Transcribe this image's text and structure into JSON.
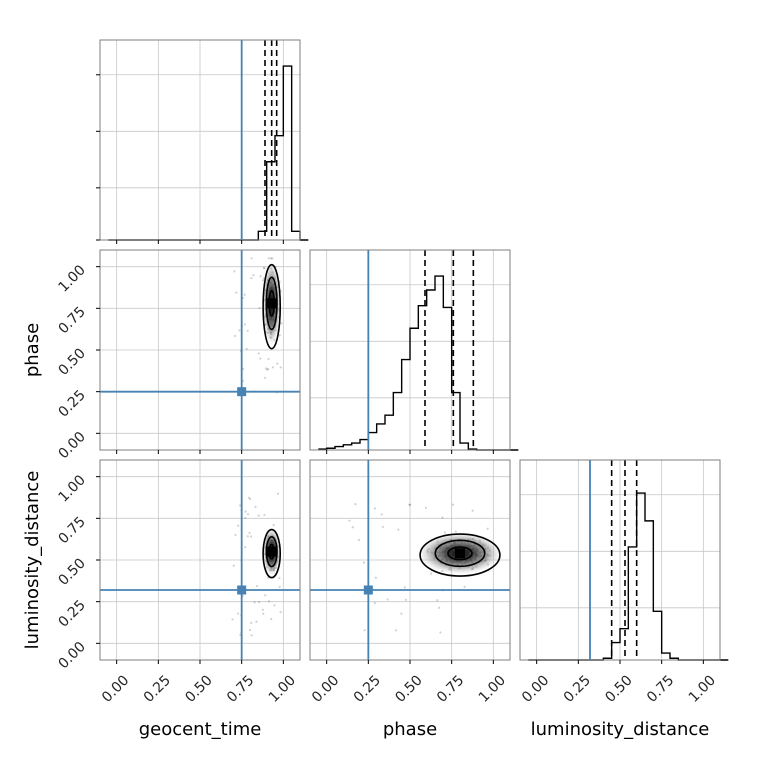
{
  "chart_data": {
    "type": "corner",
    "parameters": [
      "geocent_time",
      "phase",
      "luminosity_distance"
    ],
    "axis_range": [
      -0.1,
      1.1
    ],
    "ticks": [
      0.0,
      0.25,
      0.5,
      0.75,
      1.0
    ],
    "tick_labels": [
      "0.00",
      "0.25",
      "0.50",
      "0.75",
      "1.00"
    ],
    "grid": true,
    "truths": [
      0.75,
      0.25,
      0.32
    ],
    "quantiles": [
      [
        0.89,
        0.93,
        0.96
      ],
      [
        0.59,
        0.76,
        0.88
      ],
      [
        0.45,
        0.53,
        0.6
      ]
    ],
    "histograms": {
      "bins_start": -0.05,
      "bin_width": 0.05,
      "geocent_time": [
        0,
        0,
        0,
        0,
        0,
        0,
        0,
        0,
        0,
        0,
        0,
        0,
        0,
        0,
        0,
        0,
        0,
        0,
        0.05,
        0.45,
        0.6,
        1.0,
        0.05,
        0
      ],
      "phase": [
        0.005,
        0.01,
        0.02,
        0.03,
        0.04,
        0.06,
        0.1,
        0.15,
        0.2,
        0.33,
        0.52,
        0.7,
        0.83,
        0.92,
        1.0,
        0.82,
        0.33,
        0.04,
        0.005,
        0,
        0,
        0,
        0,
        0
      ],
      "luminosity_distance": [
        0,
        0,
        0,
        0,
        0,
        0,
        0,
        0,
        0,
        0.01,
        0.1,
        0.18,
        0.65,
        0.96,
        0.8,
        0.28,
        0.04,
        0.01,
        0,
        0,
        0,
        0,
        0,
        0
      ],
      "max_count_display": 1.15
    },
    "scatter_centers": {
      "geocent_time_phase": [
        0.93,
        0.78
      ],
      "geocent_time_luminosity_distance": [
        0.93,
        0.55
      ],
      "phase_luminosity_distance": [
        0.8,
        0.54
      ]
    },
    "colors": {
      "truth": "#4682b4",
      "hist": "#000000",
      "grid": "#c8c8c8",
      "axes": "#7f7f7f"
    }
  }
}
